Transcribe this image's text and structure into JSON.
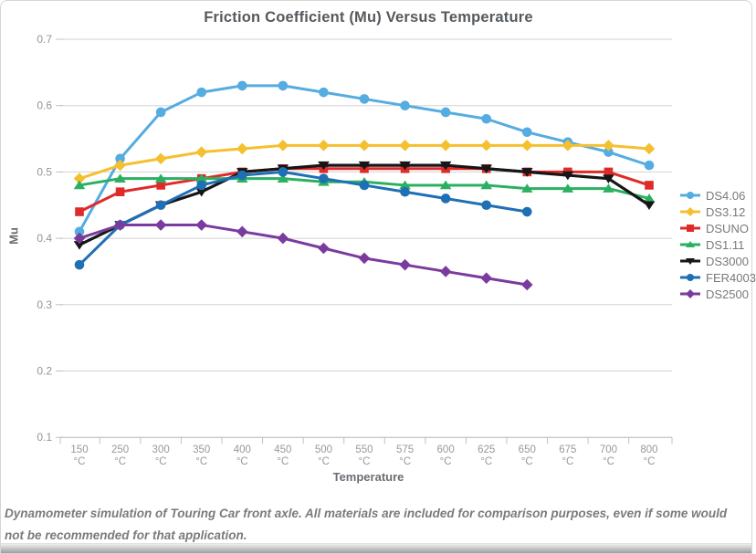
{
  "header": {
    "title": "Friction Coefficient (Mu) Versus Temperature"
  },
  "axes": {
    "y_title": "Mu",
    "x_title": "Temperature"
  },
  "footer": {
    "caption": "Dynamometer simulation of Touring Car front axle. All materials are included for comparison purposes, even if some would not be recommended for that application."
  },
  "palette": {
    "gridline": "#d2d2d2",
    "axis_line": "#c0c0c0",
    "tick_text": "#96999c",
    "title_text": "#55595d",
    "legend_text": "#76797c",
    "caption_text": "#7b7b7b"
  },
  "chart_data": {
    "type": "line",
    "title": "Friction Coefficient (Mu) Versus Temperature",
    "xlabel": "Temperature",
    "ylabel": "Mu",
    "ylim": [
      0.1,
      0.7
    ],
    "y_ticks": [
      0.7,
      0.6,
      0.5,
      0.4,
      0.3,
      0.2,
      0.1
    ],
    "grid": true,
    "legend_position": "right",
    "categories": [
      150,
      250,
      300,
      350,
      400,
      450,
      500,
      550,
      575,
      600,
      625,
      650,
      675,
      700,
      800
    ],
    "category_unit": "°C",
    "series": [
      {
        "name": "DS4.06",
        "color": "#55ace0",
        "marker": "circle",
        "values": [
          0.41,
          0.52,
          0.59,
          0.62,
          0.63,
          0.63,
          0.62,
          0.61,
          0.6,
          0.59,
          0.58,
          0.56,
          0.545,
          0.53,
          0.51
        ]
      },
      {
        "name": "DS3.12",
        "color": "#f5c02f",
        "marker": "diamond",
        "values": [
          0.49,
          0.51,
          0.52,
          0.53,
          0.535,
          0.54,
          0.54,
          0.54,
          0.54,
          0.54,
          0.54,
          0.54,
          0.54,
          0.54,
          0.535
        ]
      },
      {
        "name": "DSUNO",
        "color": "#e02a2a",
        "marker": "square",
        "values": [
          0.44,
          0.47,
          0.48,
          0.49,
          0.5,
          0.505,
          0.505,
          0.505,
          0.505,
          0.505,
          0.505,
          0.5,
          0.5,
          0.5,
          0.48
        ]
      },
      {
        "name": "DS1.11",
        "color": "#2bb062",
        "marker": "triangle_up",
        "values": [
          0.48,
          0.49,
          0.49,
          0.49,
          0.49,
          0.49,
          0.485,
          0.485,
          0.48,
          0.48,
          0.48,
          0.475,
          0.475,
          0.475,
          0.46
        ]
      },
      {
        "name": "DS3000",
        "color": "#161616",
        "marker": "triangle_down",
        "values": [
          0.39,
          0.42,
          0.45,
          0.47,
          0.5,
          0.505,
          0.51,
          0.51,
          0.51,
          0.51,
          0.505,
          0.5,
          0.495,
          0.49,
          0.45
        ]
      },
      {
        "name": "FER4003",
        "color": "#1f6fb5",
        "marker": "circle",
        "values": [
          0.36,
          0.42,
          0.45,
          0.48,
          0.495,
          0.5,
          0.49,
          0.48,
          0.47,
          0.46,
          0.45,
          0.44,
          null,
          null,
          null
        ]
      },
      {
        "name": "DS2500",
        "color": "#7b3b9e",
        "marker": "diamond",
        "values": [
          0.4,
          0.42,
          0.42,
          0.42,
          0.41,
          0.4,
          0.385,
          0.37,
          0.36,
          0.35,
          0.34,
          0.33,
          null,
          null,
          null
        ]
      }
    ]
  }
}
